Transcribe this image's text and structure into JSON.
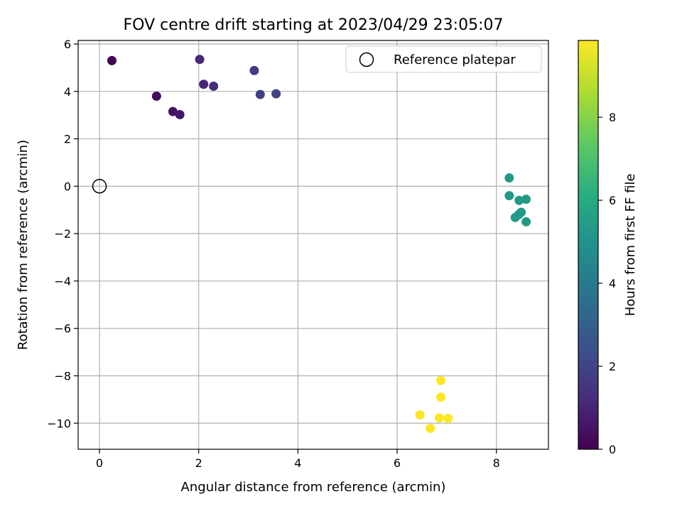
{
  "chart_data": {
    "type": "scatter",
    "title": "FOV centre drift starting at 2023/04/29 23:05:07",
    "xlabel": "Angular distance from reference (arcmin)",
    "ylabel": "Rotation from reference (arcmin)",
    "xlim": [
      -0.43,
      9.05
    ],
    "ylim": [
      -11.1,
      6.15
    ],
    "xticks": [
      0,
      2,
      4,
      6,
      8
    ],
    "xtick_labels": [
      "0",
      "2",
      "4",
      "6",
      "8"
    ],
    "yticks": [
      6,
      4,
      2,
      0,
      -2,
      -4,
      -6,
      -8,
      -10
    ],
    "ytick_labels": [
      "6",
      "4",
      "2",
      "0",
      "−2",
      "−4",
      "−6",
      "−8",
      "−10"
    ],
    "grid": true,
    "colormap": "viridis",
    "legend": {
      "position": "upper right",
      "entries": [
        {
          "label": "Reference platepar",
          "marker": "open-circle",
          "color": "#000000"
        }
      ]
    },
    "reference_point": {
      "x": 0,
      "y": 0
    },
    "colorbar": {
      "label": "Hours from first FF file",
      "range": [
        0,
        9.85
      ],
      "ticks": [
        0,
        2,
        4,
        6,
        8
      ],
      "tick_labels": [
        "0",
        "2",
        "4",
        "6",
        "8"
      ]
    },
    "points": [
      {
        "x": 0.25,
        "y": 5.3,
        "c": 0.0
      },
      {
        "x": 1.15,
        "y": 3.8,
        "c": 0.3
      },
      {
        "x": 1.48,
        "y": 3.15,
        "c": 0.45
      },
      {
        "x": 1.62,
        "y": 3.02,
        "c": 0.6
      },
      {
        "x": 2.02,
        "y": 5.35,
        "c": 1.05
      },
      {
        "x": 2.1,
        "y": 4.3,
        "c": 1.1
      },
      {
        "x": 2.3,
        "y": 4.22,
        "c": 1.2
      },
      {
        "x": 3.12,
        "y": 4.88,
        "c": 1.7
      },
      {
        "x": 3.24,
        "y": 3.87,
        "c": 1.85
      },
      {
        "x": 3.56,
        "y": 3.9,
        "c": 2.0
      },
      {
        "x": 8.26,
        "y": 0.35,
        "c": 5.3
      },
      {
        "x": 8.26,
        "y": -0.4,
        "c": 5.3
      },
      {
        "x": 8.46,
        "y": -0.6,
        "c": 5.3
      },
      {
        "x": 8.6,
        "y": -0.55,
        "c": 5.3
      },
      {
        "x": 8.5,
        "y": -1.1,
        "c": 5.3
      },
      {
        "x": 8.45,
        "y": -1.2,
        "c": 5.3
      },
      {
        "x": 8.38,
        "y": -1.32,
        "c": 5.3
      },
      {
        "x": 8.6,
        "y": -1.5,
        "c": 5.3
      },
      {
        "x": 6.88,
        "y": -8.2,
        "c": 9.85
      },
      {
        "x": 6.88,
        "y": -8.9,
        "c": 9.85
      },
      {
        "x": 6.46,
        "y": -9.65,
        "c": 9.85
      },
      {
        "x": 6.85,
        "y": -9.78,
        "c": 9.85
      },
      {
        "x": 7.03,
        "y": -9.8,
        "c": 9.85
      },
      {
        "x": 6.67,
        "y": -10.22,
        "c": 9.85
      }
    ]
  }
}
